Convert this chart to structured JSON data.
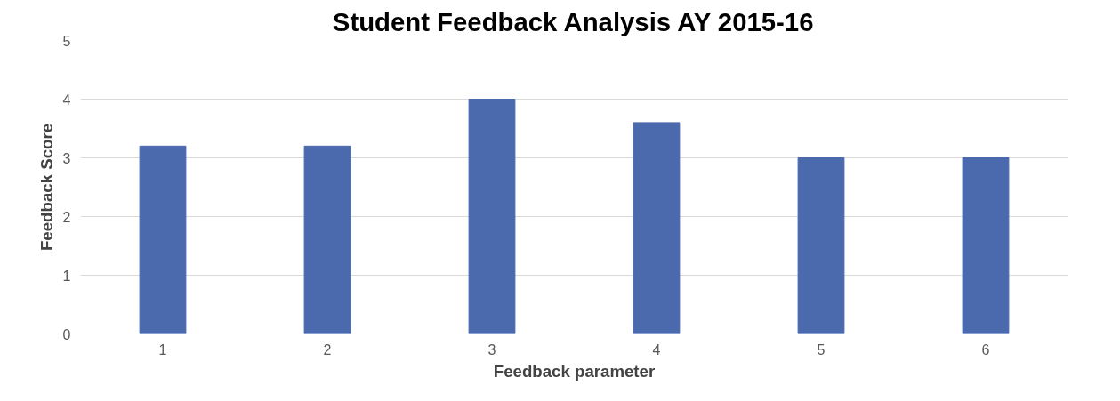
{
  "chart_data": {
    "type": "bar",
    "title": "Student Feedback Analysis AY 2015-16",
    "xlabel": "Feedback parameter",
    "ylabel": "Feedback Score",
    "categories": [
      "1",
      "2",
      "3",
      "4",
      "5",
      "6"
    ],
    "values": [
      3.2,
      3.2,
      4.0,
      3.6,
      3.0,
      3.0
    ],
    "color": "#4a6aad",
    "ylim": [
      0,
      5
    ],
    "yticks": [
      0,
      1,
      2,
      3,
      4,
      5
    ],
    "grid": "y"
  }
}
